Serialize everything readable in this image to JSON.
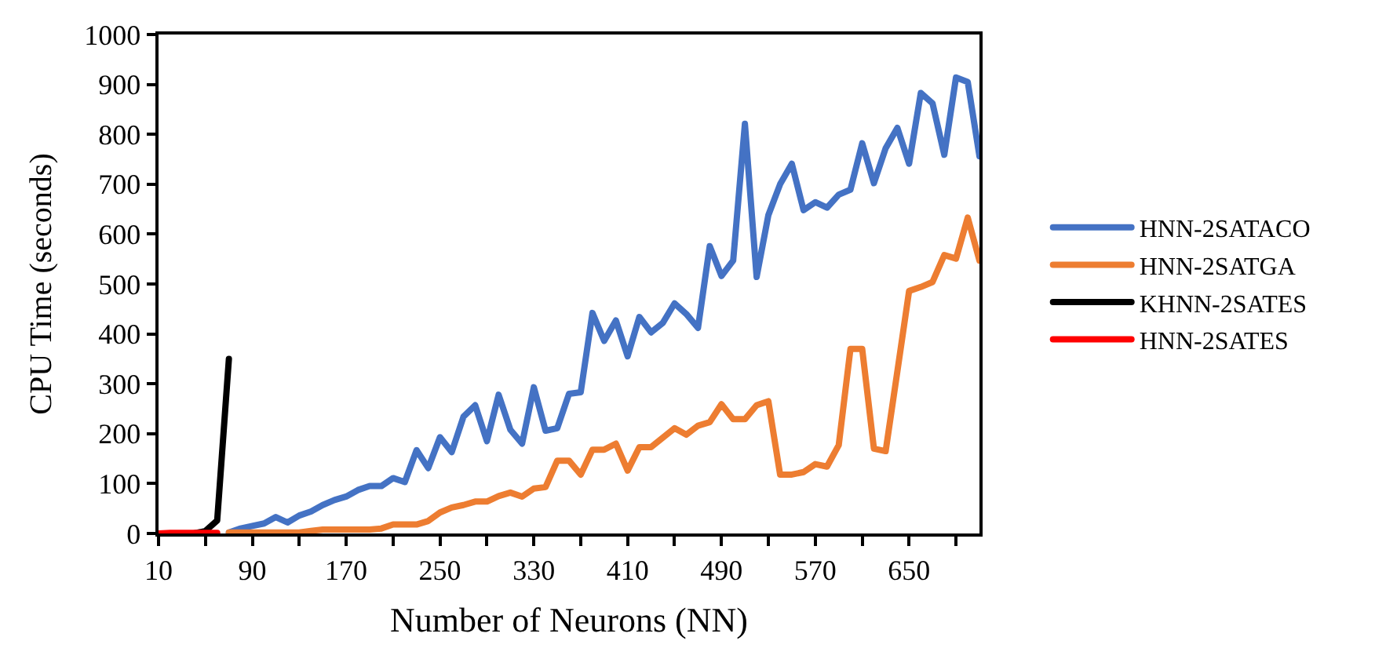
{
  "chart_data": {
    "type": "line",
    "xlabel": "Number of Neurons (NN)",
    "ylabel": "CPU Time (seconds)",
    "xlim": [
      10,
      710
    ],
    "ylim": [
      0,
      1000
    ],
    "xticks": [
      10,
      {
        "value": 50,
        "label": null
      },
      90,
      {
        "value": 130,
        "label": null
      },
      170,
      {
        "value": 210,
        "label": null
      },
      250,
      {
        "value": 290,
        "label": null
      },
      330,
      {
        "value": 370,
        "label": null
      },
      410,
      {
        "value": 450,
        "label": null
      },
      490,
      {
        "value": 530,
        "label": null
      },
      570,
      {
        "value": 610,
        "label": null
      },
      650,
      {
        "value": 690,
        "label": null
      }
    ],
    "yticks": [
      0,
      100,
      200,
      300,
      400,
      500,
      600,
      700,
      800,
      900,
      1000
    ],
    "legend": "right",
    "marker": "none",
    "line_style": "solid",
    "series": [
      {
        "name": "HNN-2SATACO",
        "color": "#4472c4",
        "x": [
          70,
          80,
          90,
          100,
          110,
          120,
          130,
          140,
          150,
          160,
          170,
          180,
          190,
          200,
          210,
          220,
          230,
          240,
          250,
          260,
          270,
          280,
          290,
          300,
          310,
          320,
          330,
          340,
          350,
          360,
          370,
          380,
          390,
          400,
          410,
          420,
          430,
          440,
          450,
          460,
          470,
          480,
          490,
          500,
          510,
          520,
          530,
          540,
          550,
          560,
          570,
          580,
          590,
          600,
          610,
          620,
          630,
          640,
          650,
          660,
          670,
          680,
          690,
          700,
          710
        ],
        "values": [
          2,
          10,
          15,
          20,
          33,
          22,
          36,
          44,
          57,
          67,
          74,
          87,
          95,
          95,
          111,
          103,
          167,
          131,
          193,
          163,
          234,
          257,
          185,
          278,
          208,
          180,
          293,
          206,
          211,
          280,
          283,
          442,
          386,
          427,
          355,
          434,
          403,
          422,
          461,
          440,
          412,
          576,
          516,
          547,
          821,
          514,
          638,
          700,
          741,
          648,
          664,
          653,
          679,
          689,
          782,
          702,
          772,
          813,
          741,
          883,
          862,
          759,
          914,
          905,
          756
        ]
      },
      {
        "name": "HNN-2SATGA",
        "color": "#ed7d31",
        "x": [
          70,
          80,
          90,
          100,
          110,
          120,
          130,
          140,
          150,
          160,
          170,
          180,
          190,
          200,
          210,
          220,
          230,
          240,
          250,
          260,
          270,
          280,
          290,
          300,
          310,
          320,
          330,
          340,
          350,
          360,
          370,
          380,
          390,
          400,
          410,
          420,
          430,
          440,
          450,
          460,
          470,
          480,
          490,
          500,
          510,
          520,
          530,
          540,
          550,
          560,
          570,
          580,
          590,
          600,
          610,
          620,
          630,
          640,
          650,
          660,
          670,
          680,
          690,
          700,
          710
        ],
        "values": [
          2,
          2,
          2,
          2,
          2,
          2,
          2,
          5,
          8,
          8,
          8,
          8,
          8,
          10,
          18,
          18,
          18,
          25,
          42,
          52,
          57,
          64,
          64,
          75,
          82,
          74,
          90,
          93,
          146,
          146,
          118,
          168,
          168,
          180,
          126,
          173,
          173,
          192,
          211,
          198,
          216,
          223,
          259,
          229,
          229,
          257,
          265,
          118,
          118,
          123,
          139,
          134,
          177,
          370,
          370,
          170,
          165,
          325,
          486,
          494,
          504,
          558,
          551,
          633,
          547
        ]
      },
      {
        "name": "KHNN-2SATES",
        "color": "#000000",
        "x": [
          10,
          20,
          30,
          40,
          50,
          60,
          70
        ],
        "values": [
          0,
          0,
          0,
          0,
          5,
          26,
          350
        ]
      },
      {
        "name": "HNN-2SATES",
        "color": "#ff0000",
        "x": [
          10,
          20,
          30,
          40,
          50,
          60
        ],
        "values": [
          0,
          1,
          1,
          1,
          1,
          1
        ]
      }
    ]
  }
}
